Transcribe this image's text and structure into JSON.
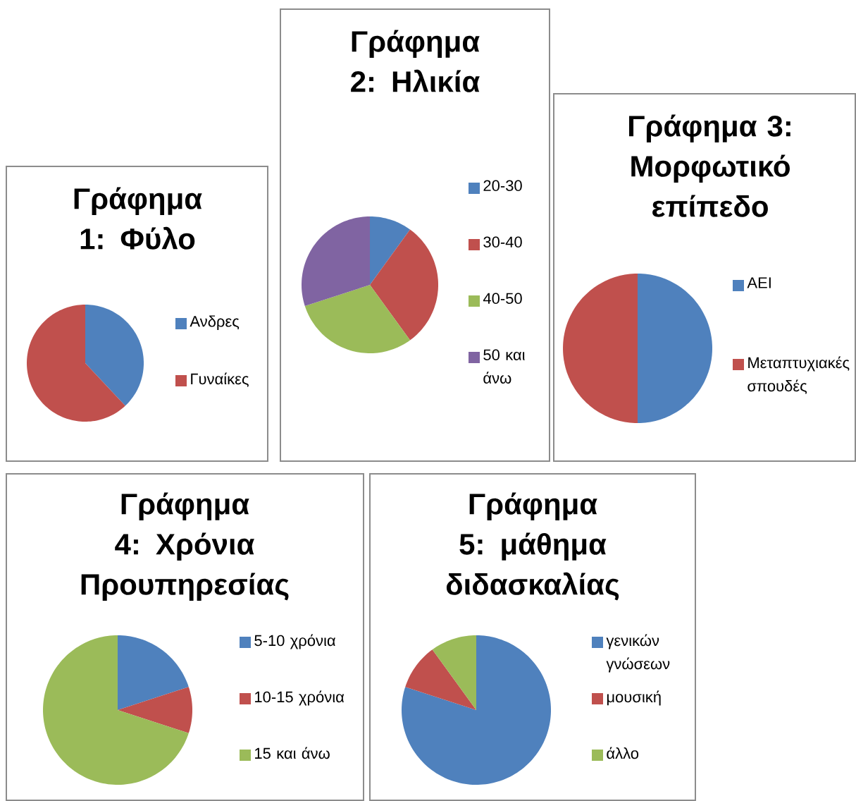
{
  "chart_data": [
    {
      "type": "pie",
      "title": "Γράφημα 1: Φύλο",
      "categories": [
        "Ανδρες",
        "Γυναίκες"
      ],
      "values": [
        38,
        62
      ],
      "colors": [
        "#4f81bd",
        "#c0504d"
      ],
      "legend": "right"
    },
    {
      "type": "pie",
      "title": "Γράφημα 2: Ηλικία",
      "categories": [
        "20-30",
        "30-40",
        "40-50",
        "50 και άνω"
      ],
      "values": [
        10,
        30,
        30,
        30
      ],
      "colors": [
        "#4f81bd",
        "#c0504d",
        "#9bbb59",
        "#8064a2"
      ],
      "legend": "right"
    },
    {
      "type": "pie",
      "title": "Γράφημα 3: Μορφωτικό επίπεδο",
      "categories": [
        "ΑΕΙ",
        "Μεταπτυχιακές σπουδές"
      ],
      "values": [
        50,
        50
      ],
      "colors": [
        "#4f81bd",
        "#c0504d"
      ],
      "legend": "right"
    },
    {
      "type": "pie",
      "title": "Γράφημα 4: Χρόνια Προυπηρεσίας",
      "categories": [
        "5-10 χρόνια",
        "10-15 χρόνια",
        "15 και άνω"
      ],
      "values": [
        20,
        10,
        70
      ],
      "colors": [
        "#4f81bd",
        "#c0504d",
        "#9bbb59"
      ],
      "legend": "right"
    },
    {
      "type": "pie",
      "title": "Γράφημα 5: μάθημα διδασκαλίας",
      "categories": [
        "γενικών γνώσεων",
        "μουσική",
        "άλλο"
      ],
      "values": [
        80,
        10,
        10
      ],
      "colors": [
        "#4f81bd",
        "#c0504d",
        "#9bbb59"
      ],
      "legend": "right"
    }
  ]
}
